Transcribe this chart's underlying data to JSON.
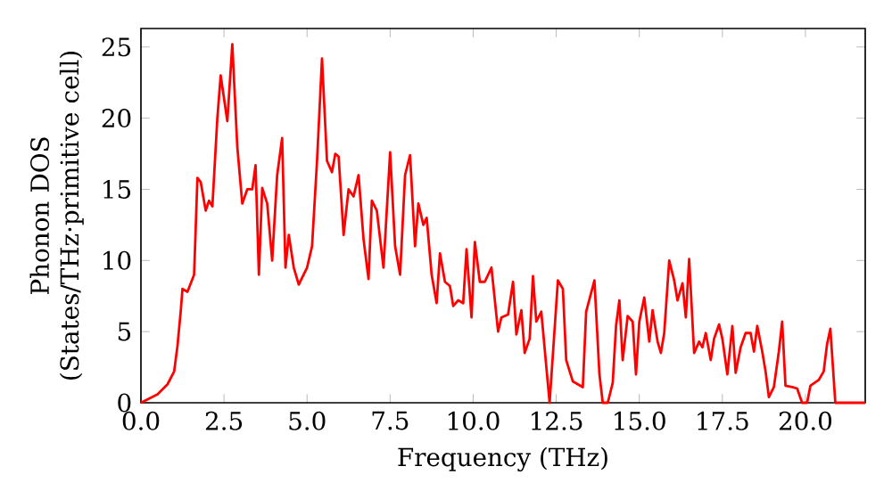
{
  "chart_data": {
    "type": "line",
    "xlabel": "Frequency (THz)",
    "ylabel": "Phonon DOS (States/THz·primitive cell)",
    "xlim": [
      0,
      21.8
    ],
    "ylim": [
      0,
      26.3
    ],
    "xticks": [
      {
        "value": 0,
        "label": "0.0"
      },
      {
        "value": 2.5,
        "label": "2.5"
      },
      {
        "value": 5,
        "label": "5.0"
      },
      {
        "value": 7.5,
        "label": "7.5"
      },
      {
        "value": 10,
        "label": "10.0"
      },
      {
        "value": 12.5,
        "label": "12.5"
      },
      {
        "value": 15,
        "label": "15.0"
      },
      {
        "value": 17.5,
        "label": "17.5"
      },
      {
        "value": 20,
        "label": "20.0"
      }
    ],
    "yticks": [
      0,
      5,
      10,
      15,
      20,
      25
    ],
    "series": [
      {
        "color": "#ff0000",
        "x": [
          0,
          0.5,
          0.8,
          1.0,
          1.1,
          1.2,
          1.25,
          1.4,
          1.6,
          1.7,
          1.8,
          1.95,
          2.05,
          2.15,
          2.3,
          2.4,
          2.6,
          2.75,
          2.9,
          3.05,
          3.2,
          3.35,
          3.45,
          3.55,
          3.65,
          3.8,
          3.95,
          4.1,
          4.25,
          4.35,
          4.45,
          4.6,
          4.75,
          5.0,
          5.15,
          5.3,
          5.45,
          5.6,
          5.75,
          5.85,
          5.95,
          6.1,
          6.25,
          6.4,
          6.55,
          6.7,
          6.85,
          6.95,
          7.1,
          7.3,
          7.5,
          7.65,
          7.8,
          7.95,
          8.1,
          8.25,
          8.35,
          8.5,
          8.6,
          8.75,
          8.9,
          9.0,
          9.15,
          9.3,
          9.4,
          9.55,
          9.7,
          9.8,
          9.95,
          10.05,
          10.2,
          10.35,
          10.55,
          10.75,
          10.85,
          11.05,
          11.2,
          11.3,
          11.45,
          11.55,
          11.7,
          11.8,
          11.9,
          12.05,
          12.3,
          12.55,
          12.7,
          12.8,
          13.0,
          13.3,
          13.4,
          13.65,
          13.8,
          13.9,
          14.05,
          14.2,
          14.3,
          14.4,
          14.5,
          14.65,
          14.8,
          14.9,
          15.0,
          15.15,
          15.3,
          15.4,
          15.55,
          15.65,
          15.75,
          15.9,
          16.05,
          16.15,
          16.3,
          16.4,
          16.5,
          16.65,
          16.8,
          16.9,
          17.0,
          17.15,
          17.25,
          17.4,
          17.5,
          17.65,
          17.8,
          17.9,
          18.05,
          18.2,
          18.35,
          18.45,
          18.55,
          18.7,
          18.8,
          18.9,
          19.05,
          19.2,
          19.3,
          19.4,
          19.6,
          19.75,
          19.9,
          20.05,
          20.15,
          20.4,
          20.55,
          20.65,
          20.75,
          20.9,
          21.8
        ],
        "values": [
          0,
          0.6,
          1.3,
          2.2,
          4,
          6.5,
          8,
          7.8,
          9,
          15.8,
          15.5,
          13.5,
          14.2,
          13.8,
          20,
          23,
          19.8,
          25.2,
          18,
          14,
          15,
          15,
          16.7,
          9,
          15.1,
          14,
          10,
          16,
          18.6,
          9.5,
          11.8,
          9.5,
          8.3,
          9.5,
          11,
          17,
          24.2,
          17,
          16.2,
          17.5,
          17.3,
          11.8,
          15,
          14.5,
          16,
          11.5,
          8.7,
          14.2,
          13.5,
          9.5,
          17.6,
          11,
          9,
          16,
          17.4,
          11,
          14,
          12.5,
          13,
          9,
          7,
          10.5,
          8.5,
          8.2,
          6.8,
          7.2,
          7,
          10.8,
          6,
          11.3,
          8.5,
          8.5,
          9.5,
          5,
          6,
          6.2,
          8.5,
          4.8,
          6.5,
          3.5,
          4.5,
          8.9,
          5.7,
          6.4,
          0,
          8.6,
          8.0,
          3,
          1.5,
          1.1,
          6.4,
          8.6,
          2,
          0,
          0,
          1.4,
          5.4,
          7.2,
          3,
          6.1,
          5.7,
          2,
          5.7,
          7.4,
          4.3,
          6.5,
          4.3,
          3.5,
          4.9,
          10.0,
          8.6,
          7.2,
          8.4,
          6,
          10.1,
          3.5,
          4.3,
          3.9,
          4.9,
          3,
          4.5,
          5.5,
          4.5,
          2,
          5.4,
          2.1,
          3.9,
          4.9,
          4.9,
          3.6,
          5.4,
          3.6,
          2.2,
          0.4,
          1.1,
          3.6,
          5.7,
          1.2,
          1.1,
          1.0,
          0,
          0,
          1.2,
          1.6,
          2.2,
          4.1,
          5.2,
          0,
          0
        ]
      }
    ]
  }
}
